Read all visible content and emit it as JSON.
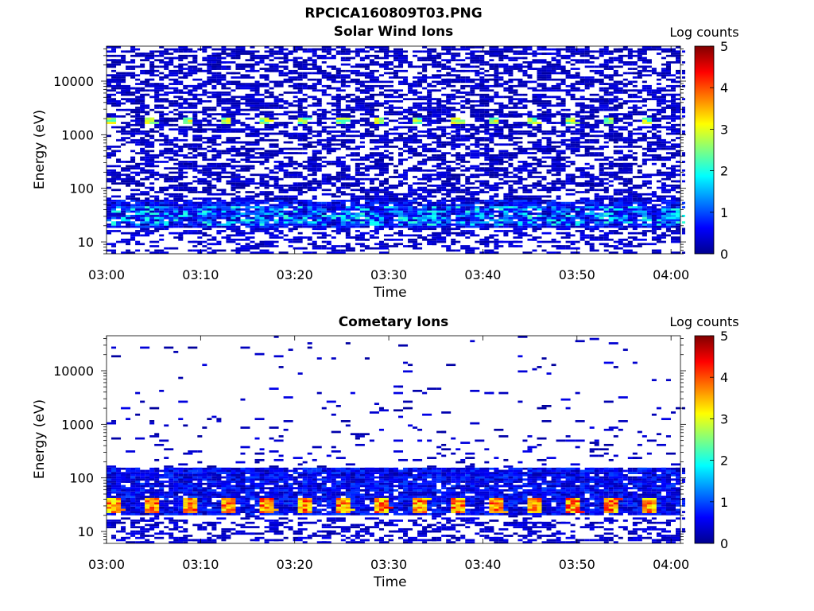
{
  "figure": {
    "title": "RPCICA160809T03.PNG"
  },
  "colorbar": {
    "title": "Log counts",
    "ticks": [
      "0",
      "1",
      "2",
      "3",
      "4",
      "5"
    ],
    "colormap": "jet"
  },
  "chart_data": [
    {
      "type": "heatmap",
      "title": "Solar Wind Ions",
      "xlabel": "Time",
      "ylabel": "Energy (eV)",
      "yscale": "log",
      "xlim": [
        "03:00",
        "04:01"
      ],
      "ylim": [
        6,
        45000
      ],
      "xticks": [
        "03:00",
        "03:10",
        "03:20",
        "03:30",
        "03:40",
        "03:50",
        "04:00"
      ],
      "yticks": [
        "10",
        "100",
        "1000",
        "10000"
      ],
      "clim": [
        0,
        5
      ],
      "colorbar_label": "Log counts",
      "pattern": {
        "background_density": 0.45,
        "dense_band_eV": [
          18,
          60
        ],
        "dense_band_level": [
          0.3,
          1.2
        ],
        "bright_band_eV": 1800,
        "bright_band_level": 1.7,
        "low_sparse_eV": [
          6,
          18
        ]
      }
    },
    {
      "type": "heatmap",
      "title": "Cometary Ions",
      "xlabel": "Time",
      "ylabel": "Energy (eV)",
      "yscale": "log",
      "xlim": [
        "03:00",
        "04:01"
      ],
      "ylim": [
        6,
        45000
      ],
      "xticks": [
        "03:00",
        "03:10",
        "03:20",
        "03:30",
        "03:40",
        "03:50",
        "04:00"
      ],
      "yticks": [
        "10",
        "100",
        "1000",
        "10000"
      ],
      "clim": [
        0,
        5
      ],
      "colorbar_label": "Log counts",
      "pattern": {
        "background_density": 0.12,
        "dense_band_eV": [
          20,
          150
        ],
        "bright_band_eV": 30,
        "bright_band_level": 2.6,
        "low_sparse_eV": [
          6,
          18
        ]
      }
    }
  ]
}
